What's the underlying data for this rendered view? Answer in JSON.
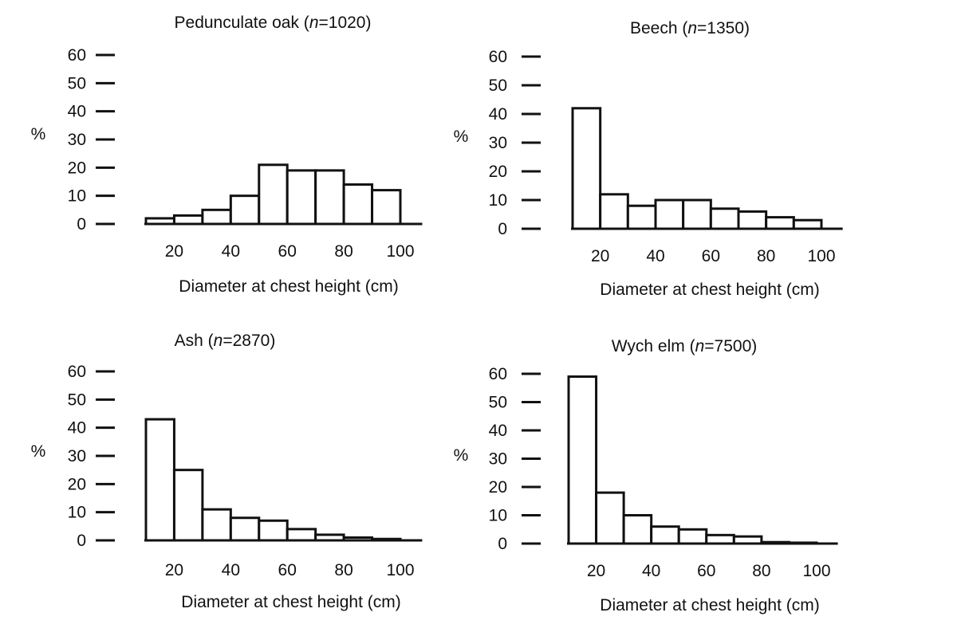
{
  "chart_data": [
    {
      "type": "bar",
      "title_name": "Pedunculate oak",
      "title_n": "n",
      "title_count": "=1020",
      "xlabel": "Diameter at chest height (cm)",
      "ylabel": "%",
      "bin_edges": [
        10,
        20,
        30,
        40,
        50,
        60,
        70,
        80,
        90,
        100
      ],
      "values": [
        2,
        3,
        5,
        10,
        21,
        19,
        19,
        14,
        12
      ],
      "xlim": [
        10,
        110
      ],
      "ylim": [
        0,
        60
      ],
      "xticks": [
        20,
        40,
        60,
        80,
        100
      ],
      "yticks": [
        0,
        10,
        20,
        30,
        40,
        50,
        60
      ]
    },
    {
      "type": "bar",
      "title_name": "Beech",
      "title_n": "n",
      "title_count": "=1350",
      "xlabel": "Diameter at chest height (cm)",
      "ylabel": "%",
      "bin_edges": [
        10,
        20,
        30,
        40,
        50,
        60,
        70,
        80,
        90,
        100
      ],
      "values": [
        42,
        12,
        8,
        10,
        10,
        7,
        6,
        4,
        3
      ],
      "xlim": [
        10,
        110
      ],
      "ylim": [
        0,
        60
      ],
      "xticks": [
        20,
        40,
        60,
        80,
        100
      ],
      "yticks": [
        0,
        10,
        20,
        30,
        40,
        50,
        60
      ]
    },
    {
      "type": "bar",
      "title_name": "Ash",
      "title_n": "n",
      "title_count": "=2870",
      "xlabel": "Diameter at chest height (cm)",
      "ylabel": "%",
      "bin_edges": [
        10,
        20,
        30,
        40,
        50,
        60,
        70,
        80,
        90,
        100
      ],
      "values": [
        43,
        25,
        11,
        8,
        7,
        4,
        2,
        1,
        0.5
      ],
      "xlim": [
        10,
        110
      ],
      "ylim": [
        0,
        60
      ],
      "xticks": [
        20,
        40,
        60,
        80,
        100
      ],
      "yticks": [
        0,
        10,
        20,
        30,
        40,
        50,
        60
      ]
    },
    {
      "type": "bar",
      "title_name": "Wych elm",
      "title_n": "n",
      "title_count": "=7500",
      "xlabel": "Diameter at chest height (cm)",
      "ylabel": "%",
      "bin_edges": [
        10,
        20,
        30,
        40,
        50,
        60,
        70,
        80,
        90,
        100
      ],
      "values": [
        59,
        18,
        10,
        6,
        5,
        3,
        2.5,
        0.5,
        0.3
      ],
      "xlim": [
        10,
        110
      ],
      "ylim": [
        0,
        60
      ],
      "xticks": [
        20,
        40,
        60,
        80,
        100
      ],
      "yticks": [
        0,
        10,
        20,
        30,
        40,
        50,
        60
      ]
    }
  ]
}
